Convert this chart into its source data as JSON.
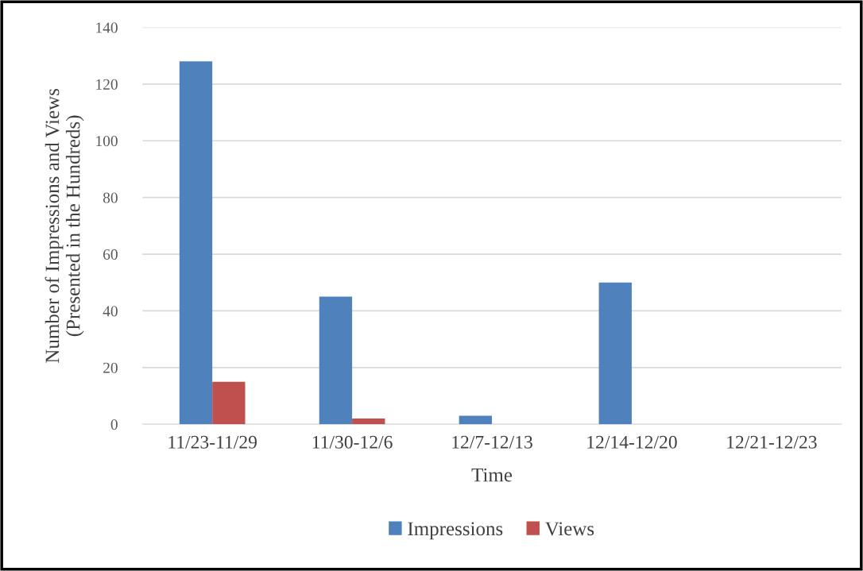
{
  "chart_data": {
    "type": "bar",
    "xlabel": "Time",
    "ylabel": "Number of Impressions and Views\n(Presented in the Hundreds)",
    "categories": [
      "11/23-11/29",
      "11/30-12/6",
      "12/7-12/13",
      "12/14-12/20",
      "12/21-12/23"
    ],
    "series": [
      {
        "name": "Impressions",
        "color": "#4f81bd",
        "values": [
          128,
          45,
          3,
          50,
          0
        ]
      },
      {
        "name": "Views",
        "color": "#c0504d",
        "values": [
          15,
          2,
          0,
          0,
          0
        ]
      }
    ],
    "ylim": [
      0,
      140
    ],
    "yticks": [
      0,
      20,
      40,
      60,
      80,
      100,
      120,
      140
    ],
    "grid": "y",
    "legend": "bottom"
  }
}
